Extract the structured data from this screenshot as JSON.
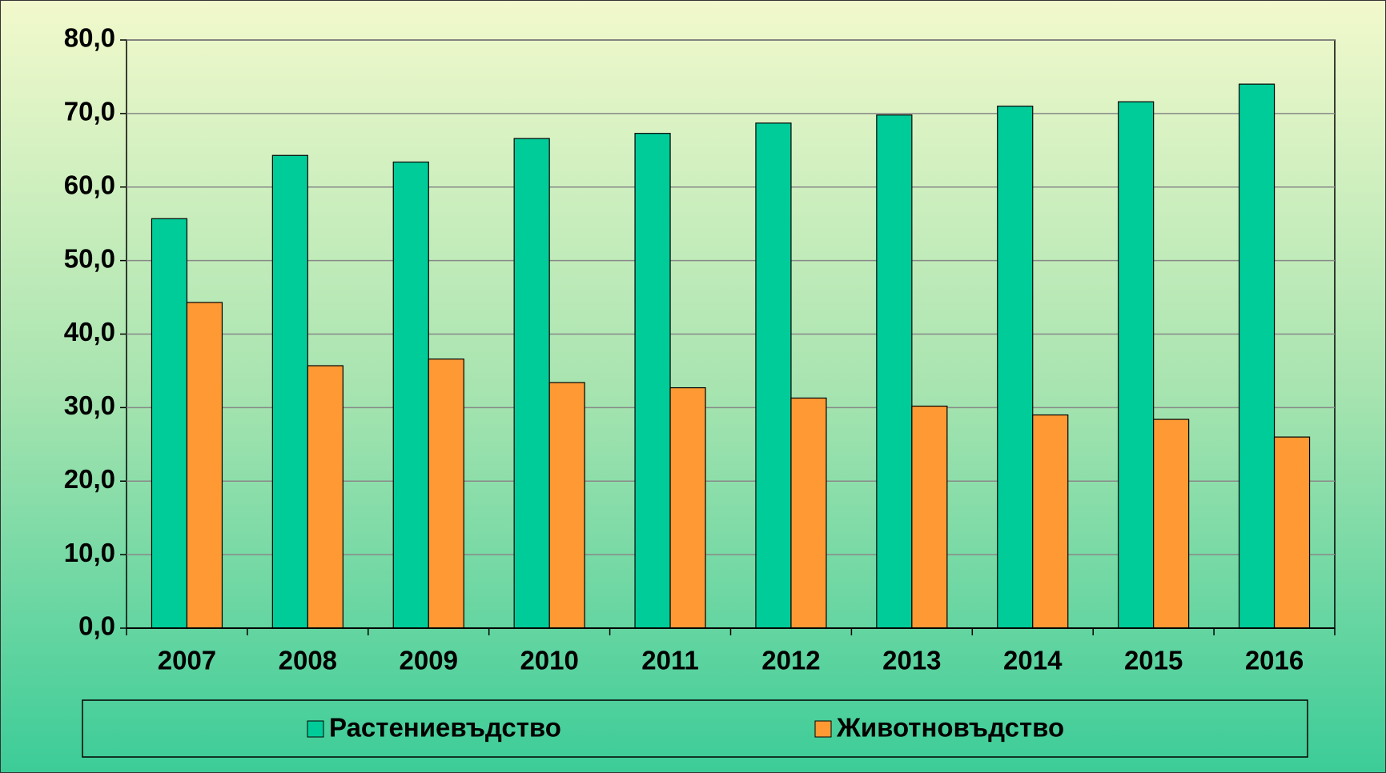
{
  "chart_data": {
    "type": "bar",
    "categories": [
      "2007",
      "2008",
      "2009",
      "2010",
      "2011",
      "2012",
      "2013",
      "2014",
      "2015",
      "2016"
    ],
    "series": [
      {
        "name": "Растениевъдство",
        "color": "#00cc99",
        "values": [
          55.7,
          64.3,
          63.4,
          66.6,
          67.3,
          68.7,
          69.8,
          71.0,
          71.6,
          74.0
        ]
      },
      {
        "name": "Животновъдство",
        "color": "#ff9933",
        "values": [
          44.3,
          35.7,
          36.6,
          33.4,
          32.7,
          31.3,
          30.2,
          29.0,
          28.4,
          26.0
        ]
      }
    ],
    "ylim": [
      0,
      80
    ],
    "yticks": [
      {
        "value": 0,
        "label": "0,0"
      },
      {
        "value": 10,
        "label": "10,0"
      },
      {
        "value": 20,
        "label": "20,0"
      },
      {
        "value": 30,
        "label": "30,0"
      },
      {
        "value": 40,
        "label": "40,0"
      },
      {
        "value": 50,
        "label": "50,0"
      },
      {
        "value": 60,
        "label": "60,0"
      },
      {
        "value": 70,
        "label": "70,0"
      },
      {
        "value": 80,
        "label": "80,0"
      }
    ],
    "grid": true,
    "legend": "bottom"
  }
}
